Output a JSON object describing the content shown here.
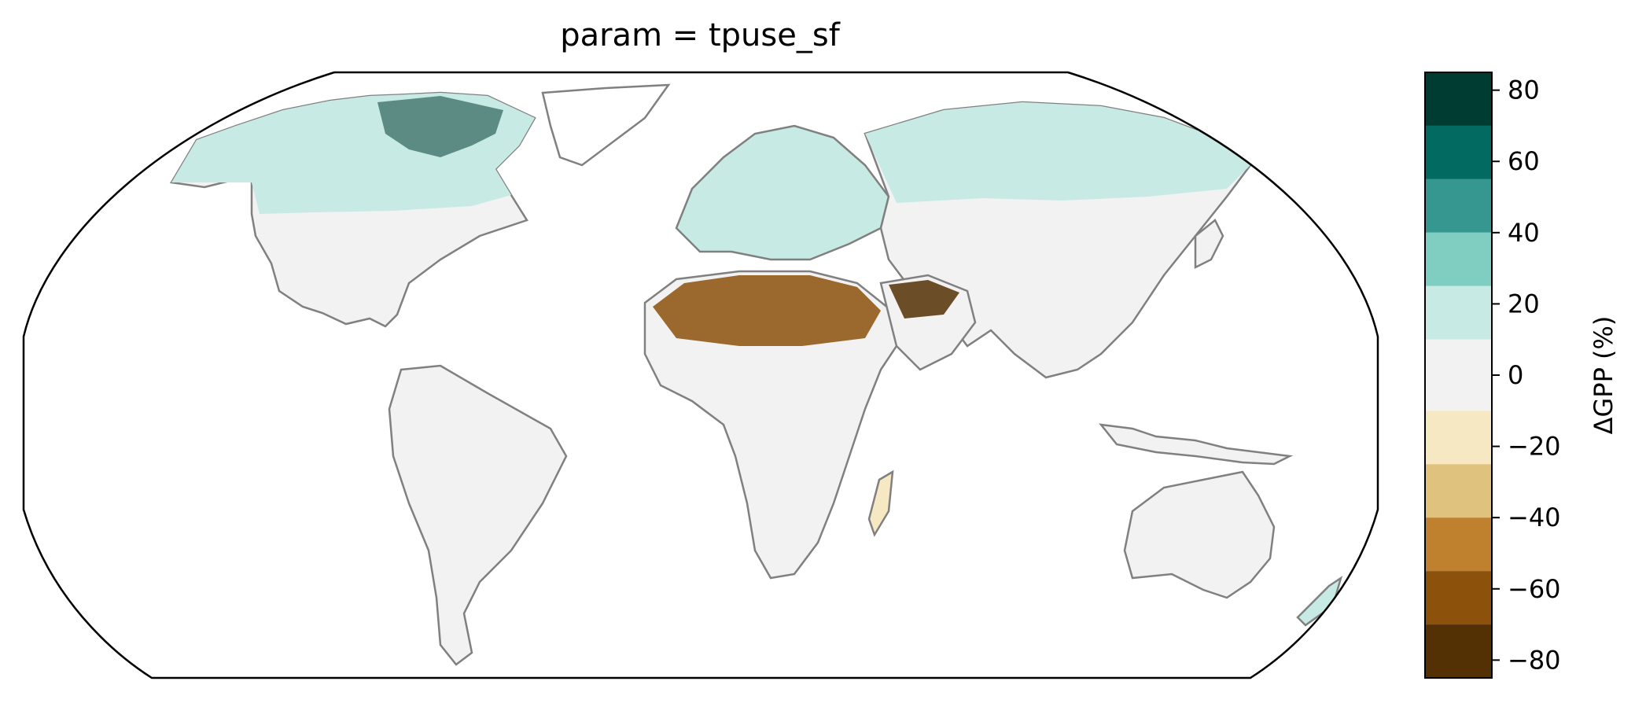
{
  "title": "param = tpuse_sf",
  "colorbar": {
    "label": "ΔGPP (%)",
    "ticks": [
      "80",
      "60",
      "40",
      "20",
      "0",
      "−20",
      "−40",
      "−60",
      "−80"
    ],
    "tick_values": [
      80,
      60,
      40,
      20,
      0,
      -20,
      -40,
      -60,
      -80
    ],
    "bins": [
      {
        "from": 70,
        "to": 85,
        "color": "#013c33"
      },
      {
        "from": 55,
        "to": 70,
        "color": "#036a61"
      },
      {
        "from": 40,
        "to": 55,
        "color": "#35978f"
      },
      {
        "from": 25,
        "to": 40,
        "color": "#80cdc1"
      },
      {
        "from": 10,
        "to": 25,
        "color": "#c7eae5"
      },
      {
        "from": -10,
        "to": 10,
        "color": "#f2f2f2"
      },
      {
        "from": -25,
        "to": -10,
        "color": "#f6e8c3"
      },
      {
        "from": -40,
        "to": -25,
        "color": "#dfc27d"
      },
      {
        "from": -55,
        "to": -40,
        "color": "#bf812d"
      },
      {
        "from": -70,
        "to": -55,
        "color": "#8c510a"
      },
      {
        "from": -85,
        "to": -70,
        "color": "#543005"
      }
    ],
    "range": [
      -85,
      85
    ]
  },
  "map": {
    "projection": "Robinson",
    "coastline_color": "#808080",
    "border_color": "#c8c8c8"
  }
}
